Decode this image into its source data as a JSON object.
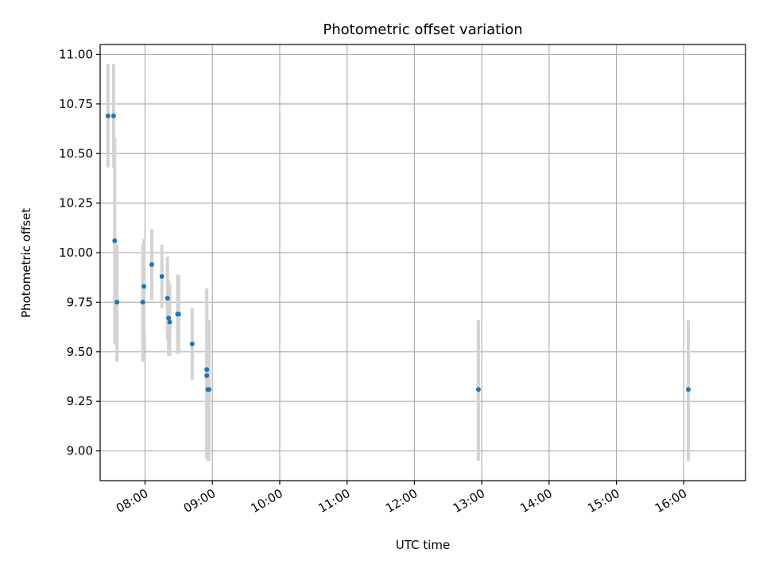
{
  "chart_data": {
    "type": "scatter",
    "title": "Photometric offset variation",
    "xlabel": "UTC time",
    "ylabel": "Photometric offset",
    "x_unit": "UTC time of day",
    "xlim": [
      "07:20",
      "16:55"
    ],
    "ylim": [
      8.85,
      11.05
    ],
    "xticks": [
      "08:00",
      "09:00",
      "10:00",
      "11:00",
      "12:00",
      "13:00",
      "14:00",
      "15:00",
      "16:00"
    ],
    "yticks": [
      9.0,
      9.25,
      9.5,
      9.75,
      10.0,
      10.25,
      10.5,
      10.75,
      11.0
    ],
    "ytick_labels": [
      "9.00",
      "9.25",
      "9.50",
      "9.75",
      "10.00",
      "10.25",
      "10.50",
      "10.75",
      "11.00"
    ],
    "grid": true,
    "marker_color": "#1f77b4",
    "errorbar_color": "#d3d3d3",
    "points": [
      {
        "x": "07:27",
        "y": 10.69,
        "lo": 10.43,
        "hi": 10.95
      },
      {
        "x": "07:32",
        "y": 10.69,
        "lo": 10.43,
        "hi": 10.95
      },
      {
        "x": "07:33",
        "y": 10.06,
        "lo": 9.54,
        "hi": 10.58
      },
      {
        "x": "07:35",
        "y": 9.75,
        "lo": 9.45,
        "hi": 10.04
      },
      {
        "x": "07:58",
        "y": 9.75,
        "lo": 9.45,
        "hi": 10.04
      },
      {
        "x": "07:59",
        "y": 9.83,
        "lo": 9.59,
        "hi": 10.07
      },
      {
        "x": "08:06",
        "y": 9.94,
        "lo": 9.76,
        "hi": 10.12
      },
      {
        "x": "08:15",
        "y": 9.88,
        "lo": 9.72,
        "hi": 10.04
      },
      {
        "x": "08:20",
        "y": 9.77,
        "lo": 9.56,
        "hi": 9.98
      },
      {
        "x": "08:21",
        "y": 9.67,
        "lo": 9.48,
        "hi": 9.86
      },
      {
        "x": "08:22",
        "y": 9.65,
        "lo": 9.48,
        "hi": 9.84
      },
      {
        "x": "08:29",
        "y": 9.69,
        "lo": 9.49,
        "hi": 9.89
      },
      {
        "x": "08:30",
        "y": 9.69,
        "lo": 9.49,
        "hi": 9.89
      },
      {
        "x": "08:42",
        "y": 9.54,
        "lo": 9.36,
        "hi": 9.72
      },
      {
        "x": "08:55",
        "y": 9.41,
        "lo": 9.0,
        "hi": 9.82
      },
      {
        "x": "08:55",
        "y": 9.38,
        "lo": 8.96,
        "hi": 9.8
      },
      {
        "x": "08:56",
        "y": 9.31,
        "lo": 8.95,
        "hi": 9.66
      },
      {
        "x": "08:57",
        "y": 9.31,
        "lo": 8.95,
        "hi": 9.66
      },
      {
        "x": "12:57",
        "y": 9.31,
        "lo": 8.95,
        "hi": 9.66
      },
      {
        "x": "16:04",
        "y": 9.31,
        "lo": 8.95,
        "hi": 9.66
      }
    ]
  }
}
